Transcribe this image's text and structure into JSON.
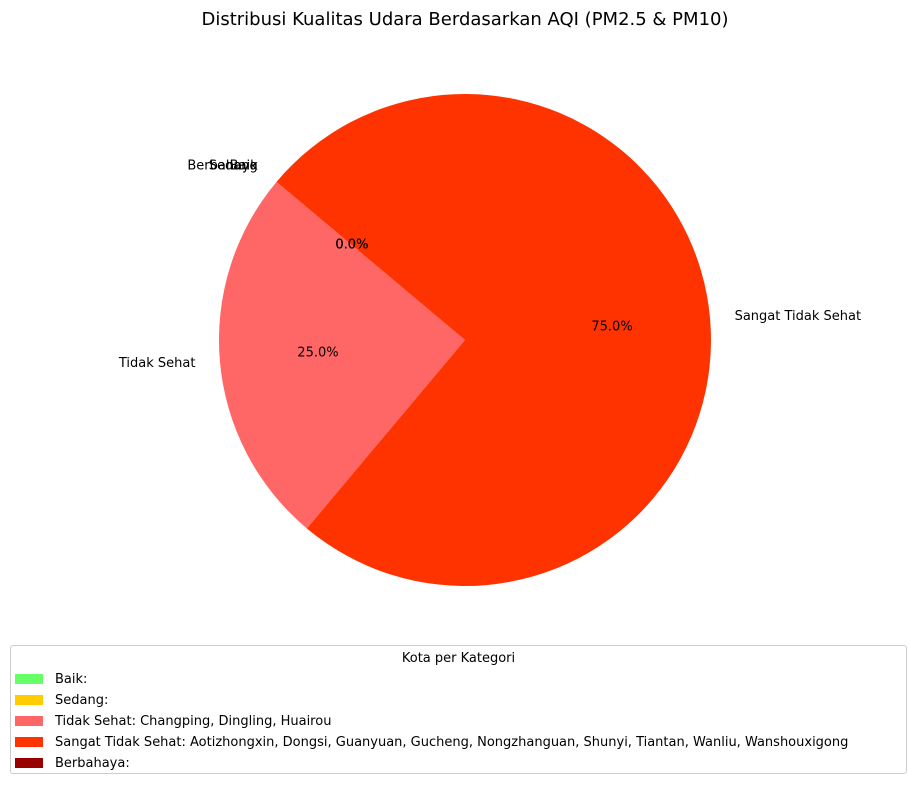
{
  "chart_data": {
    "type": "pie",
    "title": "Distribusi Kualitas Udara Berdasarkan AQI (PM2.5 & PM10)",
    "categories": [
      "Baik",
      "Sedang",
      "Tidak Sehat",
      "Sangat Tidak Sehat",
      "Berbahaya"
    ],
    "values": [
      0,
      0,
      3,
      9,
      0
    ],
    "percent_labels": [
      "0.0%",
      "0.0%",
      "25.0%",
      "75.0%",
      "0.0%"
    ],
    "colors": [
      "#66ff66",
      "#ffcc00",
      "#ff6666",
      "#ff3300",
      "#990000"
    ],
    "start_angle_deg": 140,
    "legend": {
      "title": "Kota per Kategori",
      "placement": "bottom",
      "entries": [
        "Baik: ",
        "Sedang: ",
        "Tidak Sehat: Changping, Dingling, Huairou",
        "Sangat Tidak Sehat: Aotizhongxin, Dongsi, Guanyuan, Gucheng, Nongzhanguan, Shunyi, Tiantan, Wanliu, Wanshouxigong",
        "Berbahaya: "
      ]
    }
  }
}
